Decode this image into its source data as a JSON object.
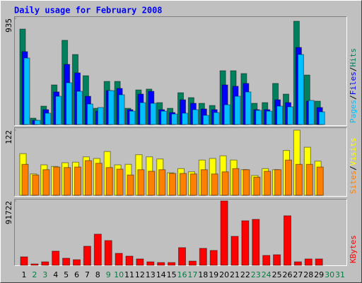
{
  "chart_data": [
    {
      "type": "bar",
      "title": "Daily usage for February 2008",
      "categories": [
        "1",
        "2",
        "3",
        "4",
        "5",
        "6",
        "7",
        "8",
        "9",
        "10",
        "11",
        "12",
        "13",
        "14",
        "15",
        "16",
        "17",
        "18",
        "19",
        "20",
        "21",
        "22",
        "23",
        "24",
        "25",
        "26",
        "27",
        "28",
        "29",
        "30",
        "31"
      ],
      "series": [
        {
          "name": "Hits",
          "color": "#00805c",
          "values": [
            841,
            56,
            162,
            349,
            742,
            617,
            430,
            143,
            380,
            380,
            143,
            305,
            312,
            193,
            143,
            280,
            237,
            187,
            168,
            474,
            474,
            449,
            187,
            193,
            362,
            268,
            910,
            436,
            206,
            null,
            null
          ]
        },
        {
          "name": "Files",
          "color": "#0000ff",
          "values": [
            642,
            37,
            131,
            287,
            530,
            455,
            249,
            118,
            299,
            318,
            131,
            268,
            293,
            131,
            106,
            218,
            187,
            137,
            131,
            349,
            337,
            362,
            131,
            131,
            218,
            193,
            679,
            206,
            150,
            null,
            null
          ]
        },
        {
          "name": "Pages",
          "color": "#00c0ff",
          "values": [
            586,
            37,
            100,
            249,
            368,
            293,
            181,
            150,
            299,
            262,
            118,
            193,
            187,
            118,
            93,
            100,
            131,
            81,
            106,
            174,
            249,
            287,
            125,
            118,
            162,
            156,
            617,
            212,
            112,
            null,
            null
          ]
        }
      ],
      "ylim": [
        0,
        935
      ],
      "yticks": [
        935
      ]
    },
    {
      "type": "bar",
      "categories": [
        "1",
        "2",
        "3",
        "4",
        "5",
        "6",
        "7",
        "8",
        "9",
        "10",
        "11",
        "12",
        "13",
        "14",
        "15",
        "16",
        "17",
        "18",
        "19",
        "20",
        "21",
        "22",
        "23",
        "24",
        "25",
        "26",
        "27",
        "28",
        "29",
        "30",
        "31"
      ],
      "series": [
        {
          "name": "Visits",
          "color": "#ffff00",
          "values": [
            78,
            40,
            57,
            54,
            61,
            62,
            72,
            69,
            82,
            57,
            58,
            76,
            72,
            68,
            42,
            50,
            44,
            66,
            69,
            74,
            66,
            48,
            37,
            50,
            48,
            84,
            122,
            90,
            64,
            null,
            null
          ]
        },
        {
          "name": "Sites",
          "color": "#ff8000",
          "values": [
            58,
            38,
            48,
            53,
            52,
            53,
            65,
            60,
            52,
            49,
            38,
            48,
            45,
            48,
            41,
            41,
            40,
            48,
            40,
            44,
            50,
            48,
            34,
            45,
            48,
            66,
            58,
            58,
            53,
            null,
            null
          ]
        }
      ],
      "ylim": [
        0,
        122
      ],
      "yticks": [
        122
      ]
    },
    {
      "type": "bar",
      "categories": [
        "1",
        "2",
        "3",
        "4",
        "5",
        "6",
        "7",
        "8",
        "9",
        "10",
        "11",
        "12",
        "13",
        "14",
        "15",
        "16",
        "17",
        "18",
        "19",
        "20",
        "21",
        "22",
        "23",
        "24",
        "25",
        "26",
        "27",
        "28",
        "29",
        "30",
        "31"
      ],
      "category_colors": [
        "#000000",
        "#008040",
        "#008040",
        "#000000",
        "#000000",
        "#000000",
        "#000000",
        "#000000",
        "#008040",
        "#008040",
        "#000000",
        "#000000",
        "#000000",
        "#000000",
        "#000000",
        "#008040",
        "#008040",
        "#000000",
        "#000000",
        "#000000",
        "#000000",
        "#000000",
        "#008040",
        "#008040",
        "#000000",
        "#000000",
        "#000000",
        "#000000",
        "#000000",
        "#008040",
        "#008040"
      ],
      "series": [
        {
          "name": "KBytes",
          "color": "#ff0000",
          "values": [
            12100,
            2000,
            5000,
            20200,
            10100,
            8000,
            27200,
            44400,
            35300,
            17100,
            13100,
            9100,
            5000,
            4000,
            4000,
            25200,
            6000,
            24200,
            21200,
            91722,
            41300,
            63500,
            65500,
            14100,
            15100,
            70600,
            5000,
            9100,
            9100,
            null,
            null
          ]
        }
      ],
      "ylim": [
        0,
        91722
      ],
      "yticks": [
        91722
      ]
    }
  ]
}
